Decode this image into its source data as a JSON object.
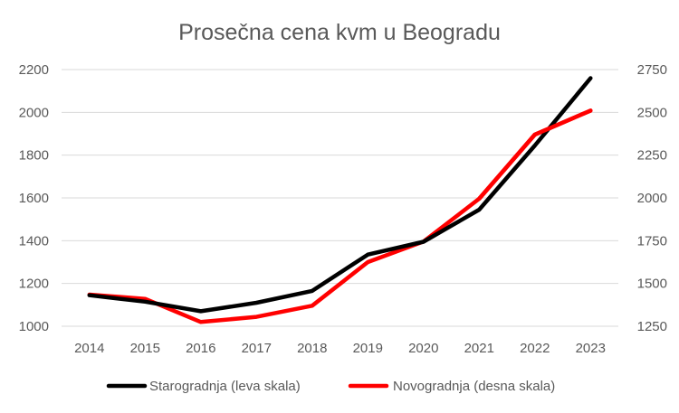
{
  "chart_data": {
    "type": "line",
    "title": "Prosečna cena kvm u Beogradu",
    "categories": [
      "2014",
      "2015",
      "2016",
      "2017",
      "2018",
      "2019",
      "2020",
      "2021",
      "2022",
      "2023"
    ],
    "y_left": {
      "ylim": [
        1000,
        2200
      ],
      "ticks": [
        "1000",
        "1200",
        "1400",
        "1600",
        "1800",
        "2000",
        "2200"
      ]
    },
    "y_right": {
      "ylim": [
        1250,
        2750
      ],
      "ticks": [
        "1250",
        "1500",
        "1750",
        "2000",
        "2250",
        "2500",
        "2750"
      ]
    },
    "series": [
      {
        "name": "Starogradnja (leva skala)",
        "axis": "left",
        "color": "#000000",
        "values": [
          1145,
          1115,
          1070,
          1110,
          1165,
          1335,
          1395,
          1545,
          1845,
          2160
        ]
      },
      {
        "name": "Novogradnja (desna skala)",
        "axis": "right",
        "color": "#ff0000",
        "values": [
          1435,
          1410,
          1275,
          1305,
          1370,
          1625,
          1745,
          1995,
          2370,
          2510
        ]
      }
    ],
    "grid": true,
    "legend_position": "bottom"
  }
}
